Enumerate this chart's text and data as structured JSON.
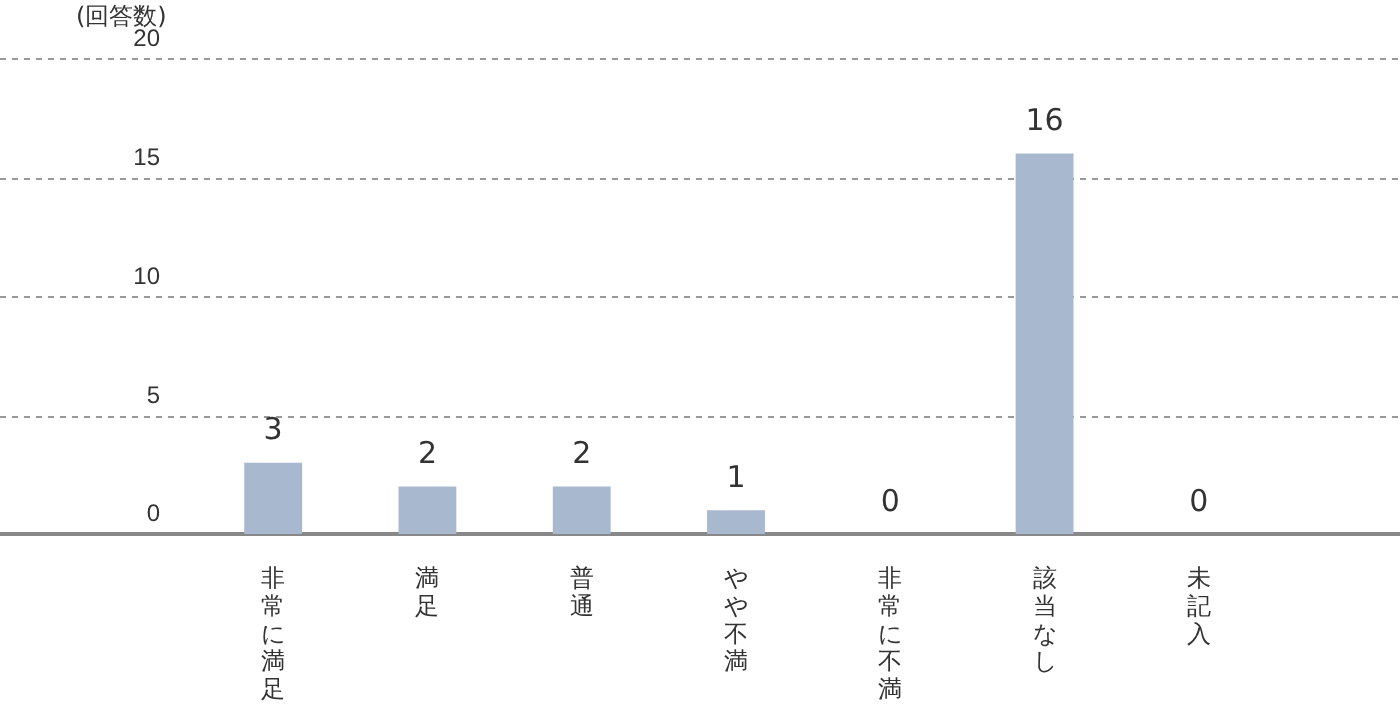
{
  "chart_data": {
    "type": "bar",
    "ylabel": "(回答数)",
    "categories": [
      "非常に満足",
      "満足",
      "普通",
      "やや不満",
      "非常に不満",
      "該当なし",
      "未記入"
    ],
    "values": [
      3,
      2,
      2,
      1,
      0,
      16,
      0
    ],
    "color": "#a8b8ce",
    "ylim": [
      0,
      20
    ],
    "yticks": [
      0,
      5,
      10,
      15,
      20
    ],
    "grid": "y",
    "data_labels": true,
    "legend": false
  }
}
